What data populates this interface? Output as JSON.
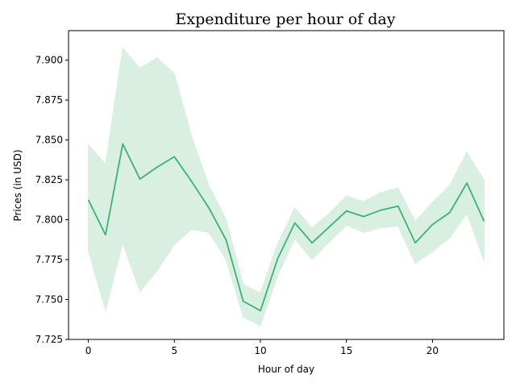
{
  "chart_data": {
    "type": "line",
    "title": "Expenditure per hour of day",
    "xlabel": "Hour of day",
    "ylabel": "Prices (in USD)",
    "xlim": [
      -1.15,
      24.15
    ],
    "ylim": [
      7.725,
      7.9185
    ],
    "x_ticks": [
      0,
      5,
      10,
      15,
      20
    ],
    "y_ticks": [
      7.725,
      7.75,
      7.775,
      7.8,
      7.825,
      7.85,
      7.875,
      7.9
    ],
    "y_tick_labels": [
      "7.725",
      "7.750",
      "7.775",
      "7.800",
      "7.825",
      "7.850",
      "7.875",
      "7.900"
    ],
    "line_color": "#3cb371",
    "band_color": "#d9efe2",
    "grid": false,
    "series": [
      {
        "x": [
          0,
          1,
          2,
          3,
          4,
          5,
          6,
          7,
          8,
          9,
          10,
          11,
          12,
          13,
          14,
          15,
          16,
          17,
          18,
          19,
          20,
          21,
          22,
          23
        ],
        "values": [
          7.8125,
          7.7905,
          7.8475,
          7.8255,
          7.833,
          7.8395,
          7.824,
          7.8075,
          7.7875,
          7.749,
          7.743,
          7.7755,
          7.798,
          7.7855,
          7.7955,
          7.8055,
          7.802,
          7.806,
          7.8085,
          7.7855,
          7.797,
          7.8045,
          7.823,
          7.799
        ],
        "lower": [
          7.7805,
          7.743,
          7.785,
          7.755,
          7.768,
          7.7845,
          7.794,
          7.792,
          7.775,
          7.739,
          7.7335,
          7.765,
          7.788,
          7.775,
          7.786,
          7.7965,
          7.792,
          7.795,
          7.796,
          7.7725,
          7.78,
          7.7885,
          7.804,
          7.774
        ],
        "upper": [
          7.847,
          7.835,
          7.9075,
          7.895,
          7.9015,
          7.8915,
          7.8525,
          7.8215,
          7.8005,
          7.7595,
          7.754,
          7.785,
          7.8075,
          7.795,
          7.804,
          7.815,
          7.8115,
          7.817,
          7.82,
          7.799,
          7.811,
          7.8215,
          7.8425,
          7.8245
        ]
      }
    ]
  }
}
